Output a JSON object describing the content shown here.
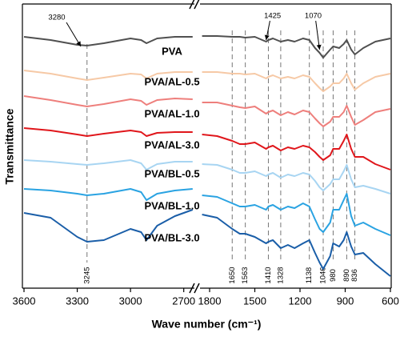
{
  "chart_data": {
    "type": "line",
    "x_label": "Wave number (cm⁻¹)",
    "y_label": "Transmittance",
    "x": [
      3600,
      3450,
      3300,
      3245,
      3150,
      3000,
      2940,
      2910,
      2850,
      2750,
      2650,
      1850,
      1750,
      1650,
      1600,
      1563,
      1500,
      1425,
      1410,
      1380,
      1328,
      1280,
      1236,
      1180,
      1138,
      1100,
      1070,
      1046,
      1000,
      980,
      940,
      910,
      890,
      860,
      836,
      780,
      700,
      600
    ],
    "x_segments": [
      {
        "xlim": [
          3600,
          2640
        ],
        "xticks": [
          3600,
          3300,
          3000,
          2700
        ]
      },
      {
        "xlim": [
          1850,
          600
        ],
        "xticks": [
          1800,
          1500,
          1200,
          900,
          600
        ]
      }
    ],
    "ylim": [
      0,
      355
    ],
    "series": [
      {
        "name": "PVA",
        "color": "#505050",
        "values": [
          314,
          310,
          304,
          303,
          306,
          312,
          310,
          306,
          312,
          314,
          314,
          315,
          315,
          314,
          314,
          313,
          314,
          308,
          310,
          312,
          308,
          310,
          308,
          312,
          310,
          300,
          294,
          288,
          298,
          302,
          300,
          305,
          310,
          298,
          292,
          300,
          308,
          312
        ]
      },
      {
        "name": "PVA/AL-0.5",
        "color": "#f6c9a6",
        "values": [
          272,
          268,
          262,
          260,
          263,
          268,
          267,
          262,
          268,
          270,
          270,
          270,
          270,
          268,
          268,
          267,
          268,
          262,
          264,
          266,
          262,
          264,
          262,
          266,
          264,
          256,
          250,
          246,
          252,
          256,
          256,
          262,
          268,
          256,
          248,
          256,
          264,
          268
        ]
      },
      {
        "name": "PVA/AL-1.0",
        "color": "#ee7f7c",
        "values": [
          240,
          235,
          229,
          227,
          230,
          236,
          234,
          229,
          235,
          237,
          236,
          232,
          232,
          228,
          226,
          225,
          227,
          218,
          220,
          222,
          216,
          220,
          217,
          222,
          220,
          212,
          206,
          202,
          208,
          214,
          214,
          220,
          228,
          214,
          204,
          210,
          220,
          224
        ]
      },
      {
        "name": "PVA/AL-3.0",
        "color": "#e0161b",
        "values": [
          200,
          197,
          192,
          190,
          193,
          197,
          195,
          190,
          194,
          195,
          195,
          192,
          190,
          184,
          180,
          180,
          182,
          174,
          176,
          178,
          172,
          176,
          174,
          178,
          176,
          170,
          164,
          160,
          166,
          174,
          174,
          184,
          192,
          174,
          164,
          164,
          155,
          148
        ]
      },
      {
        "name": "PVA/BL-0.5",
        "color": "#a8d5f2",
        "values": [
          160,
          158,
          155,
          154,
          156,
          160,
          156,
          148,
          155,
          158,
          158,
          155,
          154,
          148,
          144,
          144,
          146,
          140,
          142,
          144,
          138,
          142,
          140,
          144,
          142,
          134,
          126,
          122,
          130,
          136,
          136,
          146,
          154,
          136,
          126,
          128,
          124,
          118
        ]
      },
      {
        "name": "PVA/BL-1.0",
        "color": "#2aa3e2",
        "values": [
          124,
          122,
          118,
          116,
          118,
          124,
          120,
          110,
          118,
          122,
          124,
          116,
          114,
          106,
          102,
          102,
          104,
          98,
          102,
          104,
          98,
          102,
          100,
          106,
          102,
          86,
          74,
          70,
          82,
          98,
          98,
          110,
          118,
          90,
          78,
          82,
          74,
          66
        ]
      },
      {
        "name": "PVA/BL-3.0",
        "color": "#1a5ea8",
        "values": [
          94,
          88,
          64,
          58,
          60,
          74,
          70,
          60,
          78,
          90,
          98,
          92,
          88,
          74,
          68,
          68,
          64,
          56,
          58,
          60,
          50,
          54,
          50,
          56,
          60,
          44,
          32,
          24,
          40,
          56,
          52,
          60,
          70,
          52,
          42,
          44,
          30,
          15
        ]
      }
    ],
    "peak_lines": [
      3245,
      1650,
      1563,
      1410,
      1328,
      1138,
      1046,
      980,
      890,
      836
    ],
    "annotations": [
      3280,
      1425,
      1070
    ]
  }
}
